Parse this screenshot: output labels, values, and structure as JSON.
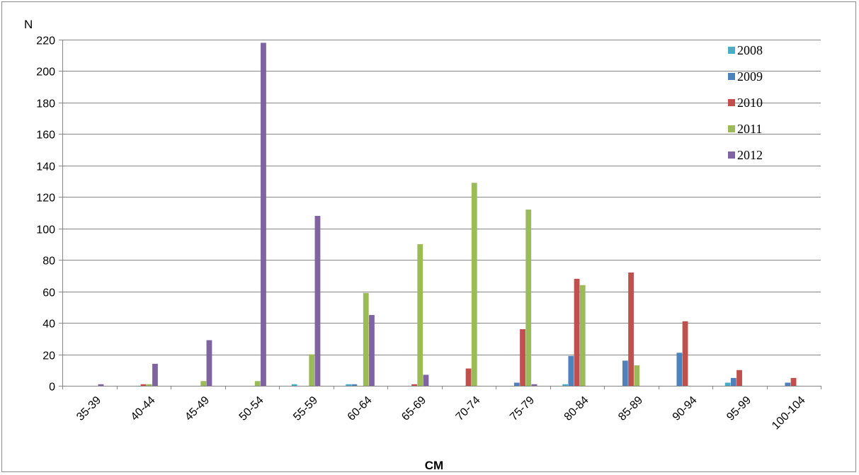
{
  "chart_data": {
    "type": "bar",
    "title": "",
    "ylabel": "N",
    "xlabel": "CM",
    "ylim": [
      0,
      220
    ],
    "yticks": [
      0,
      20,
      40,
      60,
      80,
      100,
      120,
      140,
      160,
      180,
      200,
      220
    ],
    "grid": true,
    "legend_position": "top-right",
    "categories": [
      "35-39",
      "40-44",
      "45-49",
      "50-54",
      "55-59",
      "60-64",
      "65-69",
      "70-74",
      "75-79",
      "80-84",
      "85-89",
      "90-94",
      "95-99",
      "100-104"
    ],
    "series": [
      {
        "name": "2008",
        "color": "#4BACC6",
        "values": [
          0,
          0,
          0,
          0,
          1,
          1,
          0,
          0,
          0,
          1,
          0,
          0,
          2,
          0
        ]
      },
      {
        "name": "2009",
        "color": "#4F81BD",
        "values": [
          0,
          0,
          0,
          0,
          0,
          1,
          0,
          0,
          2,
          19,
          16,
          21,
          5,
          2
        ]
      },
      {
        "name": "2010",
        "color": "#C0504D",
        "values": [
          0,
          1,
          0,
          0,
          0,
          0,
          1,
          11,
          36,
          68,
          72,
          41,
          10,
          5
        ]
      },
      {
        "name": "2011",
        "color": "#9BBB59",
        "values": [
          0,
          1,
          3,
          3,
          20,
          59,
          90,
          129,
          112,
          64,
          13,
          0,
          0,
          0
        ]
      },
      {
        "name": "2012",
        "color": "#8064A2",
        "values": [
          1,
          14,
          29,
          218,
          108,
          45,
          7,
          0,
          1,
          0,
          0,
          0,
          0,
          0
        ]
      }
    ]
  }
}
